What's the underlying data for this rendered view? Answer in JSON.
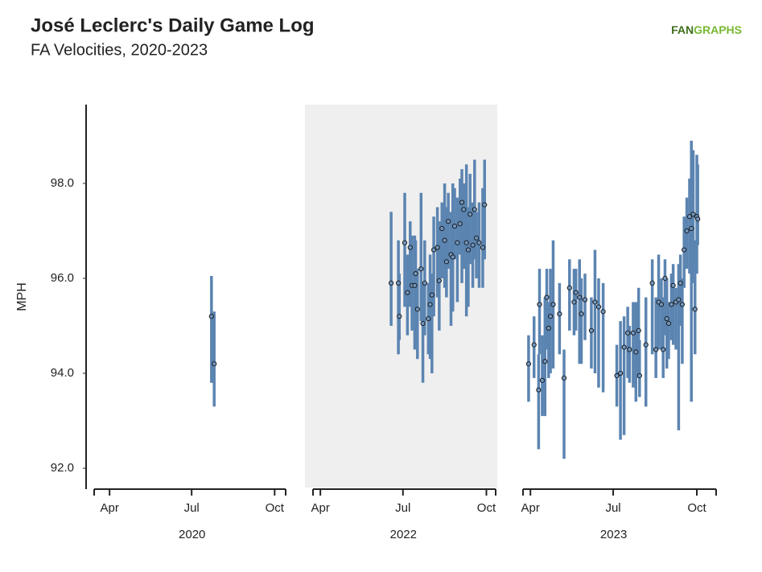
{
  "chart_data": {
    "type": "errorbar",
    "title": "José Leclerc's Daily Game Log",
    "subtitle": "FA Velocities, 2020-2023",
    "brand": [
      "FAN",
      "GRAPHS"
    ],
    "y_label": "MPH",
    "ylim": [
      91.56,
      99.66
    ],
    "yticks": [
      {
        "value": 92,
        "label": "92.0"
      },
      {
        "value": 94,
        "label": "94.0"
      },
      {
        "value": 96,
        "label": "96.0"
      },
      {
        "value": 98,
        "label": "98.0"
      }
    ],
    "bar_color": "#5b84b1",
    "point_color": "#7198c2",
    "panels": [
      {
        "label": "2020",
        "shaded": false,
        "xlim": [
          66,
          289
        ],
        "xticks": [
          {
            "value": 92,
            "label": "Apr"
          },
          {
            "value": 183,
            "label": "Jul"
          },
          {
            "value": 275,
            "label": "Oct"
          }
        ],
        "x": [
          205,
          208
        ],
        "values": [
          95.2,
          94.2
        ],
        "lower": [
          93.8,
          93.3
        ],
        "upper": [
          96.05,
          95.3
        ]
      },
      {
        "label": "2022",
        "shaded": true,
        "xlim": [
          74,
          286
        ],
        "xticks": [
          {
            "value": 91,
            "label": "Apr"
          },
          {
            "value": 182,
            "label": "Jul"
          },
          {
            "value": 274,
            "label": "Oct"
          }
        ],
        "x": [
          169,
          177,
          178,
          184,
          187,
          190,
          192,
          195,
          196,
          198,
          202,
          204,
          206,
          210,
          212,
          214,
          216,
          220,
          222,
          225,
          228,
          230,
          232,
          235,
          237,
          239,
          242,
          245,
          247,
          249,
          252,
          254,
          256,
          259,
          261,
          263,
          266,
          270,
          272
        ],
        "values": [
          95.9,
          95.9,
          95.2,
          96.75,
          95.7,
          96.65,
          95.85,
          95.85,
          96.1,
          95.35,
          96.2,
          95.05,
          95.9,
          95.15,
          95.45,
          95.65,
          96.6,
          96.65,
          95.95,
          97.05,
          96.8,
          96.35,
          97.2,
          96.5,
          96.45,
          97.1,
          96.75,
          97.15,
          97.6,
          97.45,
          96.75,
          96.6,
          97.35,
          96.7,
          97.45,
          96.85,
          96.75,
          96.65,
          97.55
        ],
        "lower": [
          95.0,
          94.4,
          94.7,
          95.4,
          94.8,
          95.4,
          94.9,
          94.5,
          95.0,
          94.3,
          95.1,
          93.8,
          94.8,
          94.4,
          94.3,
          94.0,
          95.2,
          95.6,
          94.9,
          96.0,
          95.8,
          95.6,
          96.2,
          95.0,
          95.3,
          96.4,
          95.5,
          96.5,
          95.9,
          96.2,
          95.2,
          95.4,
          96.3,
          95.8,
          96.4,
          96.0,
          95.8,
          95.8,
          96.4
        ],
        "upper": [
          97.4,
          96.8,
          96.1,
          97.8,
          96.5,
          97.2,
          96.9,
          96.9,
          96.8,
          96.2,
          97.8,
          95.9,
          96.8,
          95.9,
          96.5,
          96.1,
          97.3,
          97.5,
          97.2,
          97.6,
          98.0,
          97.5,
          97.8,
          97.4,
          98.0,
          97.9,
          97.7,
          98.1,
          98.3,
          98.0,
          98.4,
          97.5,
          98.2,
          97.6,
          98.5,
          97.4,
          97.6,
          97.9,
          98.5
        ]
      },
      {
        "label": "2023",
        "shaded": false,
        "xlim": [
          74,
          297
        ],
        "xticks": [
          {
            "value": 91,
            "label": "Apr"
          },
          {
            "value": 182,
            "label": "Jul"
          },
          {
            "value": 274,
            "label": "Oct"
          }
        ],
        "x": [
          89,
          95,
          100,
          101,
          104,
          107,
          109,
          111,
          113,
          116,
          123,
          128,
          134,
          139,
          141,
          145,
          147,
          151,
          158,
          162,
          166,
          171,
          186,
          190,
          194,
          198,
          200,
          204,
          207,
          210,
          211,
          218,
          225,
          229,
          232,
          235,
          237,
          239,
          241,
          243,
          246,
          248,
          251,
          254,
          256,
          258,
          260,
          263,
          266,
          268,
          270,
          272,
          274,
          275
        ],
        "values": [
          94.2,
          94.6,
          93.65,
          95.45,
          93.85,
          94.25,
          95.6,
          94.95,
          95.2,
          95.45,
          95.25,
          93.9,
          95.8,
          95.5,
          95.7,
          95.6,
          95.25,
          95.55,
          94.9,
          95.5,
          95.4,
          95.3,
          93.95,
          94.0,
          94.55,
          94.85,
          94.5,
          94.85,
          94.45,
          94.9,
          93.95,
          94.6,
          95.9,
          94.5,
          95.5,
          95.45,
          94.5,
          96.0,
          95.15,
          95.05,
          95.45,
          95.85,
          95.5,
          95.55,
          95.9,
          95.45,
          96.6,
          97.0,
          97.3,
          97.05,
          97.35,
          95.35,
          97.3,
          97.25
        ],
        "lower": [
          93.4,
          93.9,
          92.4,
          94.4,
          93.1,
          93.1,
          94.5,
          93.9,
          94.0,
          94.1,
          94.4,
          92.2,
          94.9,
          94.8,
          94.9,
          94.2,
          94.2,
          94.7,
          94.1,
          94.0,
          93.7,
          93.6,
          93.3,
          92.6,
          92.7,
          93.9,
          93.8,
          93.7,
          93.4,
          93.9,
          93.5,
          93.3,
          94.4,
          93.9,
          94.5,
          94.5,
          93.9,
          94.8,
          94.1,
          94.3,
          94.7,
          94.6,
          94.5,
          92.8,
          95.0,
          94.2,
          95.8,
          96.2,
          96.1,
          93.4,
          95.9,
          94.4,
          96.1,
          96.7
        ],
        "upper": [
          94.8,
          95.2,
          94.4,
          96.2,
          94.8,
          95.6,
          96.2,
          95.5,
          96.2,
          96.8,
          95.9,
          94.5,
          96.4,
          96.2,
          96.2,
          96.4,
          96.0,
          96.1,
          95.6,
          96.6,
          96.0,
          95.9,
          94.6,
          95.1,
          95.2,
          95.4,
          95.0,
          95.5,
          95.5,
          95.8,
          94.7,
          95.6,
          96.4,
          95.6,
          96.5,
          96.0,
          95.6,
          96.4,
          96.0,
          95.5,
          96.1,
          96.3,
          95.8,
          96.3,
          96.5,
          96.0,
          97.3,
          97.7,
          98.1,
          98.9,
          98.7,
          96.8,
          98.6,
          98.4
        ]
      }
    ]
  }
}
